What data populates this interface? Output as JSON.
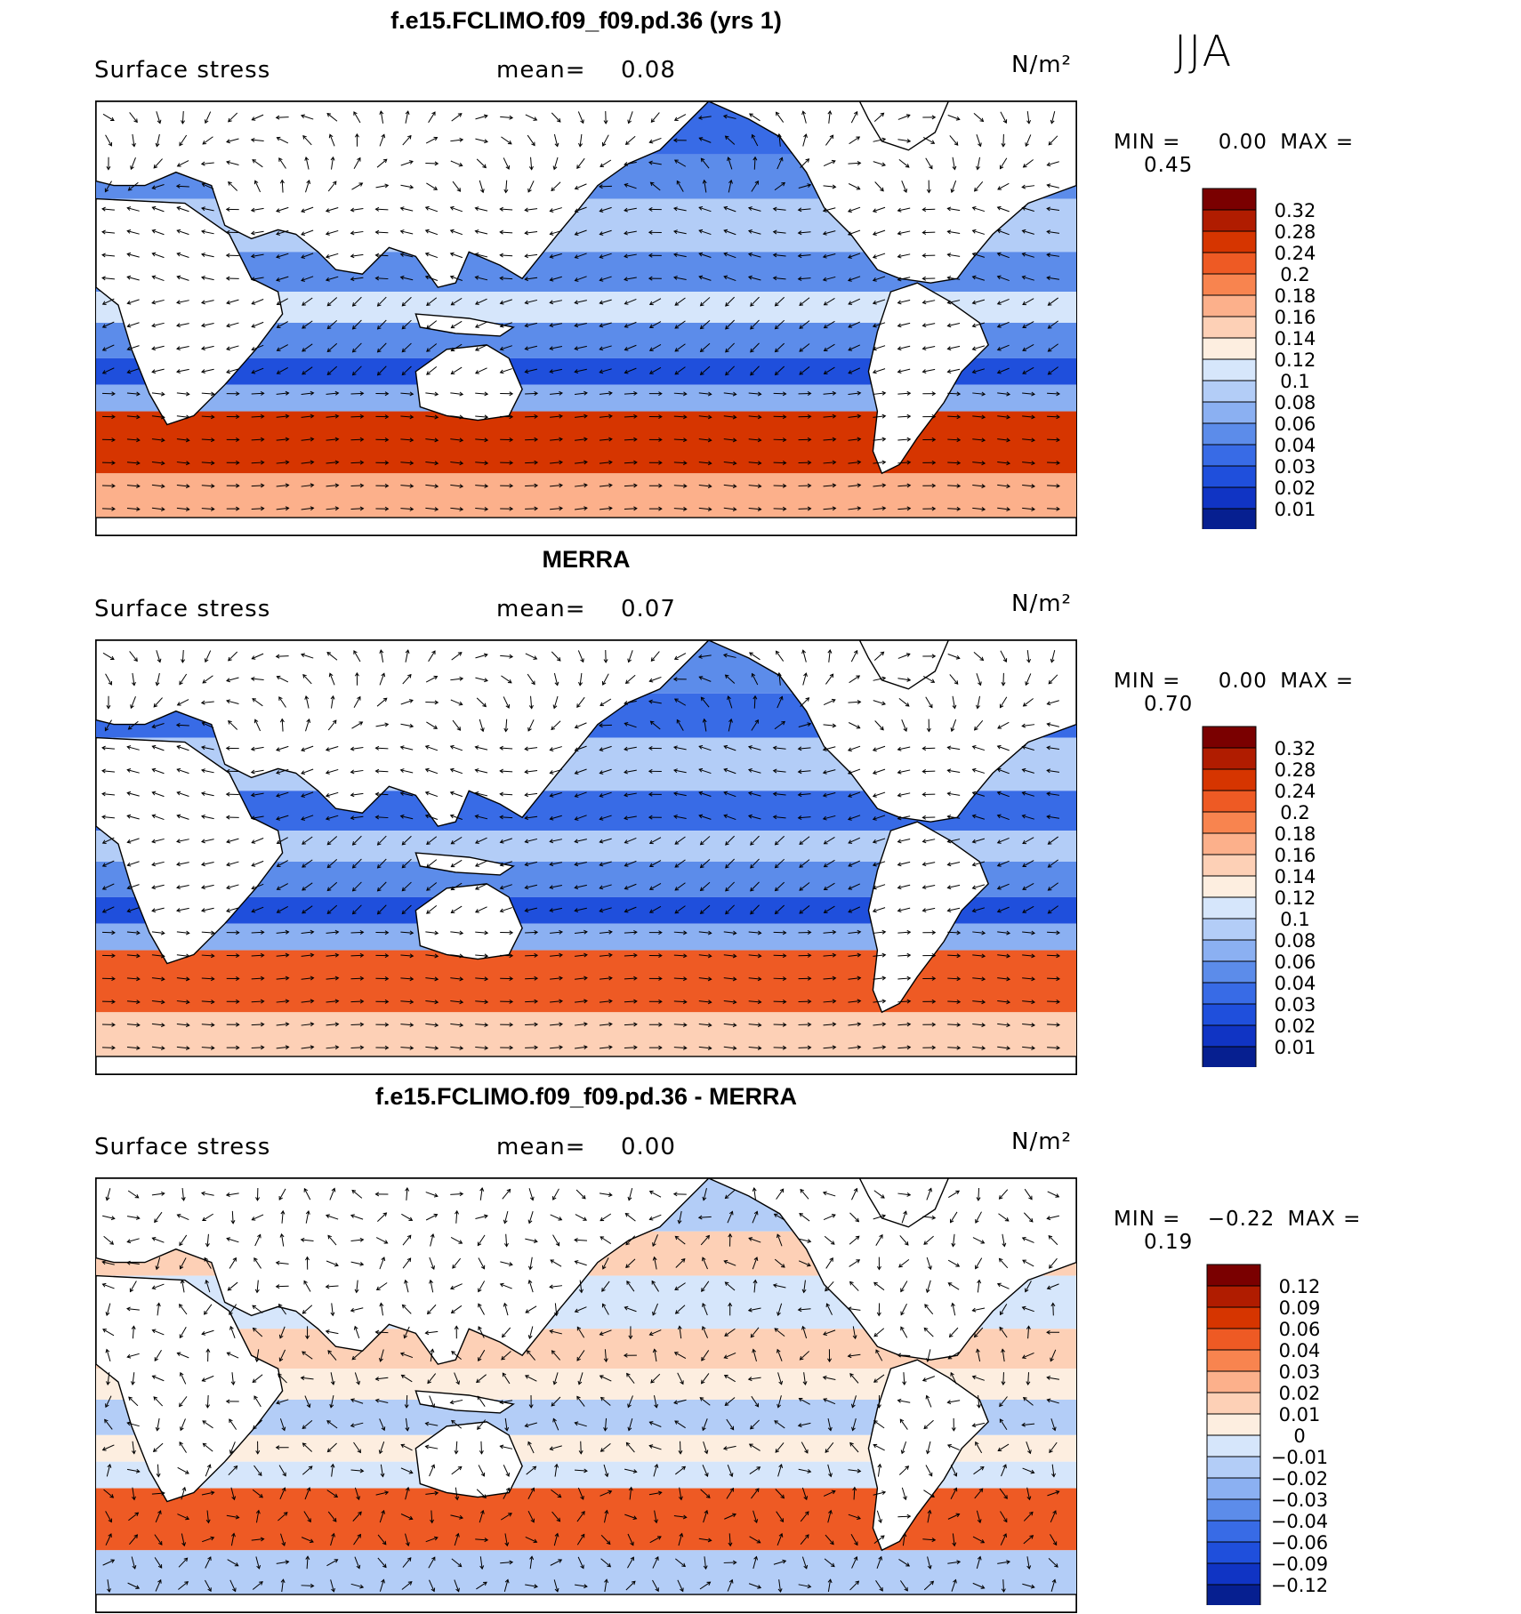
{
  "season": "JJA",
  "colorbars": {
    "full": {
      "labels": [
        "0.32",
        "0.28",
        "0.24",
        "0.2",
        "0.18",
        "0.16",
        "0.14",
        "0.12",
        "0.1",
        "0.08",
        "0.06",
        "0.04",
        "0.03",
        "0.02",
        "0.01"
      ],
      "colors": [
        "#7a0000",
        "#b01c00",
        "#d63500",
        "#ee5a24",
        "#f8844f",
        "#fcb08b",
        "#fdd0b6",
        "#fdeee0",
        "#d6e6fb",
        "#b3cdf7",
        "#8bb0f2",
        "#5c8cea",
        "#386be6",
        "#1f4fdc",
        "#1034c4",
        "#061f90"
      ]
    },
    "diff": {
      "labels": [
        "0.12",
        "0.09",
        "0.06",
        "0.04",
        "0.03",
        "0.02",
        "0.01",
        "0",
        "−0.01",
        "−0.02",
        "−0.03",
        "−0.04",
        "−0.06",
        "−0.09",
        "−0.12"
      ],
      "colors": [
        "#7a0000",
        "#b01c00",
        "#d63500",
        "#ee5a24",
        "#f8844f",
        "#fcb08b",
        "#fdd0b6",
        "#fdeee0",
        "#d6e6fb",
        "#b3cdf7",
        "#8bb0f2",
        "#5c8cea",
        "#386be6",
        "#1f4fdc",
        "#1034c4",
        "#061f90"
      ]
    }
  },
  "chart_data": [
    {
      "type": "heatmap",
      "title": "f.e15.FCLIMO.f09_f09.pd.36 (yrs 1)",
      "variable": "Surface stress",
      "mean_label": "mean=",
      "mean": "0.08",
      "units": "N/m²",
      "min_label": "MIN =",
      "min": "0.00",
      "max_label": "MAX =",
      "max": "0.45",
      "colorbar": "full"
    },
    {
      "type": "heatmap",
      "title": "MERRA",
      "variable": "Surface stress",
      "mean_label": "mean=",
      "mean": "0.07",
      "units": "N/m²",
      "min_label": "MIN =",
      "min": "0.00",
      "max_label": "MAX =",
      "max": "0.70",
      "colorbar": "full"
    },
    {
      "type": "heatmap",
      "title": "f.e15.FCLIMO.f09_f09.pd.36 - MERRA",
      "variable": "Surface stress",
      "mean_label": "mean=",
      "mean": "0.00",
      "units": "N/m²",
      "min_label": "MIN =",
      "min": "−0.22",
      "max_label": "MAX =",
      "max": "0.19",
      "colorbar": "diff"
    }
  ]
}
